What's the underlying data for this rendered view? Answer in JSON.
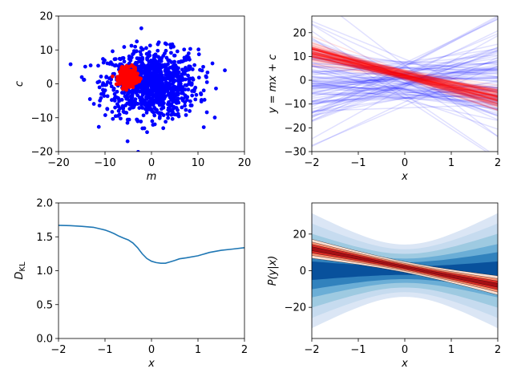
{
  "chart_data": [
    {
      "id": "params",
      "type": "scatter",
      "xlabel": "m",
      "ylabel": "c",
      "xlim": [
        -20,
        20
      ],
      "ylim": [
        -20,
        20
      ],
      "xticks": [
        -20,
        -10,
        0,
        10,
        20
      ],
      "yticks": [
        -20,
        -10,
        0,
        10,
        20
      ],
      "series": [
        {
          "name": "prior samples",
          "color": "#0000ff",
          "count": 1000,
          "mean": [
            0,
            0
          ],
          "std": [
            5,
            5
          ]
        },
        {
          "name": "posterior samples",
          "color": "#ff0000",
          "count": 400,
          "mean": [
            -5,
            2
          ],
          "std": [
            0.9,
            1.2
          ]
        }
      ]
    },
    {
      "id": "lines",
      "type": "line",
      "xlabel": "x",
      "ylabel": "y = mx + c",
      "xlim": [
        -2,
        2
      ],
      "ylim": [
        -30,
        27
      ],
      "xticks": [
        -2,
        -1,
        0,
        1,
        2
      ],
      "yticks": [
        -30,
        -20,
        -10,
        0,
        10,
        20
      ],
      "series": [
        {
          "name": "prior functions",
          "color": "#0000ff",
          "count": 100,
          "opacity": 0.12
        },
        {
          "name": "posterior functions",
          "color": "#ff0000",
          "count": 100,
          "opacity": 0.12,
          "mean_slope": -5,
          "mean_intercept": 2
        }
      ]
    },
    {
      "id": "dkl",
      "type": "line",
      "xlabel": "x",
      "ylabel": "D_KL",
      "xlim": [
        -2,
        2
      ],
      "ylim": [
        0,
        2
      ],
      "xticks": [
        -2,
        -1,
        0,
        1,
        2
      ],
      "yticks": [
        0.0,
        0.5,
        1.0,
        1.5,
        2.0
      ],
      "series": [
        {
          "name": "D_KL",
          "color": "#1f77b4",
          "x": [
            -2.0,
            -1.75,
            -1.5,
            -1.25,
            -1.0,
            -0.9,
            -0.8,
            -0.7,
            -0.6,
            -0.5,
            -0.4,
            -0.3,
            -0.2,
            -0.1,
            0.0,
            0.1,
            0.2,
            0.3,
            0.4,
            0.5,
            0.6,
            0.75,
            1.0,
            1.25,
            1.5,
            1.75,
            2.0
          ],
          "y": [
            1.67,
            1.665,
            1.655,
            1.64,
            1.6,
            1.575,
            1.545,
            1.51,
            1.48,
            1.455,
            1.41,
            1.34,
            1.25,
            1.18,
            1.14,
            1.12,
            1.11,
            1.11,
            1.13,
            1.15,
            1.175,
            1.19,
            1.22,
            1.27,
            1.3,
            1.32,
            1.34
          ]
        }
      ]
    },
    {
      "id": "predictive",
      "type": "area",
      "xlabel": "x",
      "ylabel": "P(y|x)",
      "xlim": [
        -2,
        2
      ],
      "ylim": [
        -37,
        37
      ],
      "xticks": [
        -2,
        -1,
        0,
        1,
        2
      ],
      "yticks": [
        -20,
        0,
        20
      ],
      "prior_bands": {
        "sigma_levels": [
          1,
          2,
          3
        ],
        "colors": [
          "#08519c",
          "#3182bd",
          "#6baed6",
          "#9ecae1",
          "#c6dbef",
          "#dbe6f5"
        ]
      },
      "posterior_bands": {
        "mean_slope": -5,
        "mean_intercept": 2,
        "colors": [
          "#fee0d2",
          "#fc9272",
          "#de2d26",
          "#a50f15"
        ]
      }
    }
  ]
}
